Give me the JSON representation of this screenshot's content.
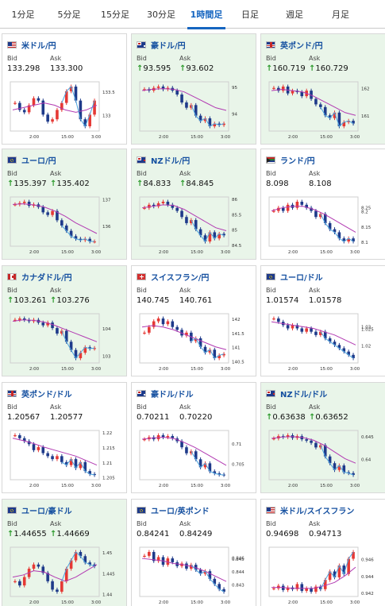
{
  "tabs": [
    {
      "label": "1分足",
      "active": false
    },
    {
      "label": "5分足",
      "active": false
    },
    {
      "label": "15分足",
      "active": false
    },
    {
      "label": "30分足",
      "active": false
    },
    {
      "label": "1時間足",
      "active": true
    },
    {
      "label": "日足",
      "active": false
    },
    {
      "label": "週足",
      "active": false
    },
    {
      "label": "月足",
      "active": false
    }
  ],
  "colors": {
    "accent": "#1565c0",
    "up_bg": "#e9f5e9",
    "bull": "#e53935",
    "bear": "#1e3a8a",
    "ma1": "#b23ab2",
    "ma2": "#4aa3df",
    "arrow": "#2e9b2e"
  },
  "labels": {
    "bid": "Bid",
    "ask": "Ask"
  },
  "cards": [
    {
      "pair": "米ドル/円",
      "flag": "us-flag-icon",
      "up": false,
      "bid": "133.298",
      "ask": "133.300",
      "arrows": false,
      "yticks": [
        "133.5",
        "133"
      ],
      "xticks": [
        "2:00",
        "15:00",
        "3:00"
      ],
      "trend": [
        133.25,
        133.1,
        133.05,
        133.2,
        133.35,
        133.3,
        133.0,
        132.85,
        132.9,
        133.1,
        133.25,
        133.5,
        133.6,
        133.3,
        132.9,
        132.75,
        133.0,
        133.3
      ],
      "ma": [
        133.1,
        133.15,
        133.2,
        133.25,
        133.2,
        133.1,
        133.05,
        133.1,
        133.2
      ]
    },
    {
      "pair": "豪ドル/円",
      "flag": "au-flag-icon",
      "up": true,
      "bid": "93.595",
      "ask": "93.602",
      "arrows": true,
      "yticks": [
        "95",
        "94"
      ],
      "xticks": [
        "2:00",
        "15:00",
        "3:00"
      ],
      "trend": [
        94.9,
        94.85,
        94.95,
        95.0,
        94.9,
        94.95,
        94.85,
        94.7,
        94.4,
        94.2,
        94.3,
        93.9,
        93.7,
        93.8,
        93.5,
        93.6,
        93.55,
        93.6
      ],
      "ma": [
        94.85,
        94.9,
        94.92,
        94.9,
        94.8,
        94.6,
        94.4,
        94.2,
        94.1
      ]
    },
    {
      "pair": "英ポンド/円",
      "flag": "gb-flag-icon",
      "up": true,
      "bid": "160.719",
      "ask": "160.729",
      "arrows": true,
      "yticks": [
        "162",
        "161"
      ],
      "xticks": [
        "2:00",
        "15:00",
        "3:00"
      ],
      "trend": [
        162.0,
        161.9,
        162.05,
        161.8,
        161.9,
        161.85,
        161.7,
        161.9,
        161.6,
        161.4,
        161.3,
        161.0,
        160.9,
        161.1,
        160.6,
        160.75,
        160.8,
        160.7
      ],
      "ma": [
        161.9,
        161.95,
        161.9,
        161.85,
        161.7,
        161.5,
        161.3,
        161.1,
        161.0
      ]
    },
    {
      "pair": "ユーロ/円",
      "flag": "eu-flag-icon",
      "up": true,
      "bid": "135.397",
      "ask": "135.402",
      "arrows": true,
      "yticks": [
        "137",
        "136"
      ],
      "xticks": [
        "2:00",
        "15:00",
        "3:00"
      ],
      "trend": [
        136.8,
        136.85,
        136.9,
        136.75,
        136.8,
        136.7,
        136.5,
        136.4,
        136.55,
        136.2,
        136.0,
        135.8,
        135.6,
        135.5,
        135.45,
        135.5,
        135.4,
        135.4
      ],
      "ma": [
        136.8,
        136.82,
        136.78,
        136.7,
        136.55,
        136.35,
        136.1,
        135.9,
        135.7
      ]
    },
    {
      "pair": "NZドル/円",
      "flag": "nz-flag-icon",
      "up": true,
      "bid": "84.833",
      "ask": "84.845",
      "arrows": true,
      "yticks": [
        "86",
        "85.5",
        "85",
        "84.5"
      ],
      "xticks": [
        "2:00",
        "15:00",
        "3:00"
      ],
      "trend": [
        85.7,
        85.8,
        85.75,
        85.85,
        85.9,
        85.8,
        85.7,
        85.6,
        85.4,
        85.2,
        85.3,
        85.0,
        84.8,
        84.6,
        84.9,
        84.7,
        84.85,
        84.8
      ],
      "ma": [
        85.7,
        85.75,
        85.8,
        85.78,
        85.65,
        85.45,
        85.25,
        85.05,
        84.95
      ]
    },
    {
      "pair": "ランド/円",
      "flag": "za-flag-icon",
      "up": false,
      "bid": "8.098",
      "ask": "8.108",
      "arrows": false,
      "yticks": [
        "8.25",
        "8.2",
        "8.15",
        "8.1"
      ],
      "xticks": [
        "2:00",
        "15:00",
        "3:00"
      ],
      "trend": [
        8.2,
        8.21,
        8.2,
        8.22,
        8.21,
        8.23,
        8.22,
        8.21,
        8.2,
        8.18,
        8.19,
        8.16,
        8.14,
        8.13,
        8.11,
        8.1,
        8.11,
        8.1
      ],
      "ma": [
        8.2,
        8.21,
        8.215,
        8.215,
        8.205,
        8.19,
        8.17,
        8.15,
        8.13
      ]
    },
    {
      "pair": "カナダドル/円",
      "flag": "ca-flag-icon",
      "up": true,
      "bid": "103.261",
      "ask": "103.276",
      "arrows": true,
      "yticks": [
        "104",
        "103"
      ],
      "xticks": [
        "2:00",
        "15:00",
        "3:00"
      ],
      "trend": [
        104.3,
        104.35,
        104.3,
        104.25,
        104.3,
        104.2,
        104.1,
        104.2,
        104.0,
        103.8,
        103.9,
        103.5,
        103.2,
        102.9,
        103.1,
        103.3,
        103.25,
        103.27
      ],
      "ma": [
        104.25,
        104.3,
        104.28,
        104.22,
        104.1,
        103.95,
        103.8,
        103.65,
        103.5
      ]
    },
    {
      "pair": "スイスフラン/円",
      "flag": "ch-flag-icon",
      "up": false,
      "bid": "140.745",
      "ask": "140.761",
      "arrows": false,
      "yticks": [
        "142",
        "141.5",
        "141",
        "140.5"
      ],
      "xticks": [
        "2:00",
        "15:00",
        "3:00"
      ],
      "trend": [
        141.5,
        141.7,
        141.9,
        142.0,
        141.8,
        141.9,
        141.7,
        141.6,
        141.4,
        141.5,
        141.2,
        141.3,
        141.0,
        140.8,
        140.9,
        140.6,
        140.7,
        140.75
      ],
      "ma": [
        141.7,
        141.75,
        141.7,
        141.6,
        141.45,
        141.3,
        141.15,
        141.0,
        140.9
      ]
    },
    {
      "pair": "ユーロ/ドル",
      "flag": "eu-flag-icon",
      "up": false,
      "bid": "1.01574",
      "ask": "1.01578",
      "arrows": false,
      "yticks": [
        "1.03",
        "1.025",
        "1.02"
      ],
      "xticks": [
        "2:00",
        "15:00",
        "3:00"
      ],
      "trend": [
        1.028,
        1.027,
        1.026,
        1.025,
        1.026,
        1.025,
        1.024,
        1.025,
        1.024,
        1.023,
        1.024,
        1.022,
        1.021,
        1.02,
        1.019,
        1.018,
        1.017,
        1.016
      ],
      "ma": [
        1.027,
        1.0265,
        1.026,
        1.0255,
        1.025,
        1.024,
        1.023,
        1.0215,
        1.02
      ]
    },
    {
      "pair": "英ポンド/ドル",
      "flag": "gb-flag-icon",
      "up": false,
      "bid": "1.20567",
      "ask": "1.20577",
      "arrows": false,
      "yticks": [
        "1.22",
        "1.215",
        "1.21",
        "1.205"
      ],
      "xticks": [
        "2:00",
        "15:00",
        "3:00"
      ],
      "trend": [
        1.219,
        1.218,
        1.217,
        1.216,
        1.214,
        1.215,
        1.213,
        1.212,
        1.211,
        1.212,
        1.21,
        1.209,
        1.211,
        1.208,
        1.21,
        1.207,
        1.206,
        1.2057
      ],
      "ma": [
        1.218,
        1.2172,
        1.2162,
        1.215,
        1.214,
        1.213,
        1.212,
        1.2105,
        1.209
      ]
    },
    {
      "pair": "豪ドル/ドル",
      "flag": "au-flag-icon",
      "up": false,
      "bid": "0.70211",
      "ask": "0.70220",
      "arrows": false,
      "yticks": [
        "0.71",
        "0.705"
      ],
      "xticks": [
        "2:00",
        "15:00",
        "3:00"
      ],
      "trend": [
        0.711,
        0.7115,
        0.711,
        0.712,
        0.7115,
        0.7118,
        0.7112,
        0.7105,
        0.709,
        0.7075,
        0.708,
        0.706,
        0.704,
        0.705,
        0.703,
        0.7025,
        0.7022,
        0.7021
      ],
      "ma": [
        0.711,
        0.7113,
        0.7115,
        0.7112,
        0.7102,
        0.709,
        0.7075,
        0.706,
        0.7045
      ]
    },
    {
      "pair": "NZドル/ドル",
      "flag": "nz-flag-icon",
      "up": true,
      "bid": "0.63638",
      "ask": "0.63652",
      "arrows": true,
      "yticks": [
        "0.645",
        "0.64"
      ],
      "xticks": [
        "2:00",
        "15:00",
        "3:00"
      ],
      "trend": [
        0.6445,
        0.645,
        0.6448,
        0.6452,
        0.6446,
        0.645,
        0.6443,
        0.644,
        0.6435,
        0.6425,
        0.643,
        0.6405,
        0.639,
        0.6375,
        0.6385,
        0.637,
        0.6368,
        0.6364
      ],
      "ma": [
        0.6445,
        0.6448,
        0.6449,
        0.6447,
        0.6441,
        0.643,
        0.6415,
        0.64,
        0.639
      ]
    },
    {
      "pair": "ユーロ/豪ドル",
      "flag": "eu-flag-icon",
      "up": true,
      "bid": "1.44655",
      "ask": "1.44669",
      "arrows": true,
      "yticks": [
        "1.45",
        "1.445",
        "1.44"
      ],
      "xticks": [
        "2:00",
        "15:00",
        "3:00"
      ],
      "trend": [
        1.443,
        1.442,
        1.444,
        1.446,
        1.447,
        1.4465,
        1.445,
        1.443,
        1.441,
        1.4405,
        1.443,
        1.446,
        1.448,
        1.45,
        1.449,
        1.4475,
        1.447,
        1.4466
      ],
      "ma": [
        1.444,
        1.4445,
        1.4455,
        1.4452,
        1.444,
        1.443,
        1.444,
        1.4455,
        1.447
      ]
    },
    {
      "pair": "ユーロ/英ポンド",
      "flag": "eu-flag-icon",
      "up": false,
      "bid": "0.84241",
      "ask": "0.84249",
      "arrows": false,
      "yticks": [
        "0.846",
        "0.845",
        "0.844",
        "0.843"
      ],
      "xticks": [
        "2:00",
        "15:00",
        "3:00"
      ],
      "trend": [
        0.8452,
        0.8455,
        0.8448,
        0.8451,
        0.8445,
        0.845,
        0.8447,
        0.8444,
        0.8446,
        0.8442,
        0.8445,
        0.8441,
        0.8438,
        0.844,
        0.8434,
        0.843,
        0.8426,
        0.8424
      ],
      "ma": [
        0.845,
        0.8449,
        0.8448,
        0.8446,
        0.8445,
        0.8443,
        0.844,
        0.8436,
        0.8432
      ]
    },
    {
      "pair": "米ドル/スイスフラン",
      "flag": "us-flag-icon",
      "up": false,
      "bid": "0.94698",
      "ask": "0.94713",
      "arrows": false,
      "yticks": [
        "0.946",
        "0.944",
        "0.942"
      ],
      "xticks": [
        "2:00",
        "15:00",
        "3:00"
      ],
      "trend": [
        0.9425,
        0.9428,
        0.9423,
        0.9426,
        0.9424,
        0.943,
        0.9422,
        0.9425,
        0.9421,
        0.9427,
        0.9424,
        0.9435,
        0.9445,
        0.9438,
        0.9452,
        0.9442,
        0.946,
        0.9468
      ],
      "ma": [
        0.9426,
        0.9426,
        0.9425,
        0.9425,
        0.9425,
        0.9428,
        0.9432,
        0.944,
        0.945
      ]
    }
  ]
}
